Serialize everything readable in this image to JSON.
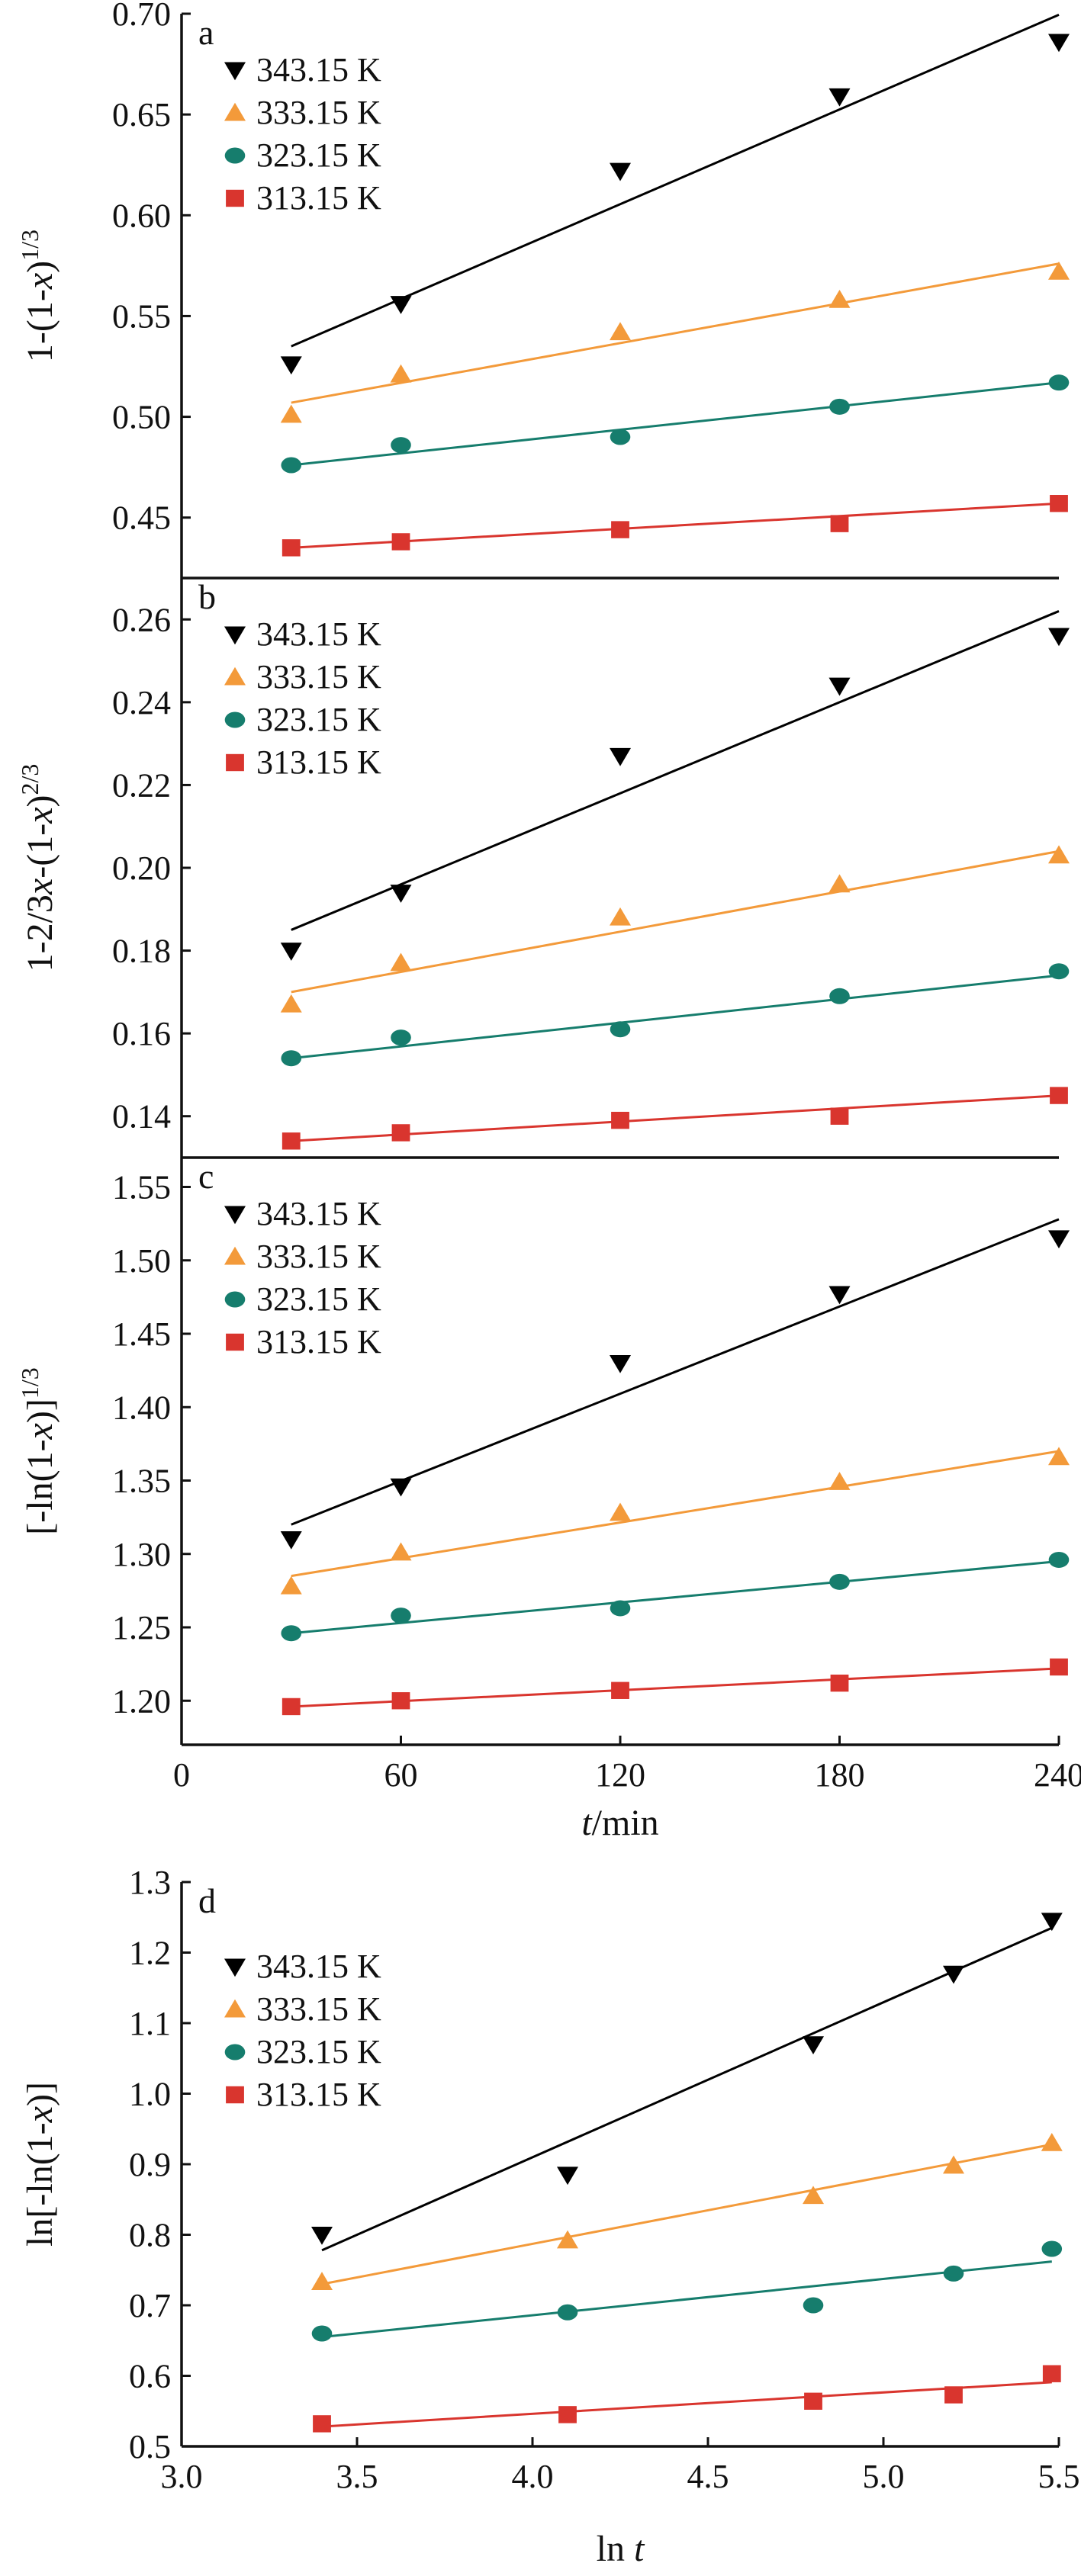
{
  "colors": {
    "343.15 K": "#000000",
    "333.15 K": "#f39a3a",
    "323.15 K": "#167d6d",
    "313.15 K": "#d9352e"
  },
  "markers": {
    "343.15 K": "triangle-down",
    "333.15 K": "triangle-up",
    "323.15 K": "circle",
    "313.15 K": "square"
  },
  "chart_data": [
    {
      "panel": "a",
      "type": "scatter",
      "ylabel": "1-(1-x)1/3",
      "ylim": [
        0.42,
        0.7
      ],
      "yticks": [
        "0.45",
        "0.50",
        "0.55",
        "0.60",
        "0.65",
        "0.70"
      ],
      "xlim": [
        0,
        240
      ],
      "legend_position": "top-left",
      "x": [
        30,
        60,
        120,
        180,
        240
      ],
      "series": [
        {
          "name": "343.15 K",
          "values": [
            0.526,
            0.556,
            0.622,
            0.659,
            0.686
          ],
          "fit": [
            0.535,
            0.6995
          ]
        },
        {
          "name": "333.15 K",
          "values": [
            0.501,
            0.521,
            0.542,
            0.558,
            0.572
          ],
          "fit": [
            0.507,
            0.576
          ]
        },
        {
          "name": "323.15 K",
          "values": [
            0.476,
            0.486,
            0.49,
            0.505,
            0.517
          ],
          "fit": [
            0.476,
            0.517
          ]
        },
        {
          "name": "313.15 K",
          "values": [
            0.435,
            0.438,
            0.444,
            0.447,
            0.457
          ],
          "fit": [
            0.435,
            0.457
          ]
        }
      ]
    },
    {
      "panel": "b",
      "type": "scatter",
      "ylabel": "1-2/3x-(1-x)2/3",
      "ylim": [
        0.13,
        0.27
      ],
      "yticks": [
        "0.14",
        "0.16",
        "0.18",
        "0.20",
        "0.22",
        "0.24",
        "0.26"
      ],
      "xlim": [
        0,
        240
      ],
      "legend_position": "top-left",
      "x": [
        30,
        60,
        120,
        180,
        240
      ],
      "series": [
        {
          "name": "343.15 K",
          "values": [
            0.18,
            0.194,
            0.227,
            0.244,
            0.256
          ],
          "fit": [
            0.185,
            0.262
          ]
        },
        {
          "name": "333.15 K",
          "values": [
            0.167,
            0.177,
            0.188,
            0.196,
            0.203
          ],
          "fit": [
            0.17,
            0.204
          ]
        },
        {
          "name": "323.15 K",
          "values": [
            0.154,
            0.159,
            0.161,
            0.169,
            0.175
          ],
          "fit": [
            0.154,
            0.174
          ]
        },
        {
          "name": "313.15 K",
          "values": [
            0.134,
            0.136,
            0.139,
            0.14,
            0.145
          ],
          "fit": [
            0.134,
            0.145
          ]
        }
      ]
    },
    {
      "panel": "c",
      "type": "scatter",
      "ylabel": "[-ln(1-x)]1/3",
      "ylim": [
        1.17,
        1.57
      ],
      "yticks": [
        "1.20",
        "1.25",
        "1.30",
        "1.35",
        "1.40",
        "1.45",
        "1.50",
        "1.55"
      ],
      "xlim": [
        0,
        240
      ],
      "xticks": [
        "0",
        "60",
        "120",
        "180",
        "240"
      ],
      "xlabel": "t/min",
      "legend_position": "top-left",
      "x": [
        30,
        60,
        120,
        180,
        240
      ],
      "series": [
        {
          "name": "343.15 K",
          "values": [
            1.31,
            1.346,
            1.43,
            1.477,
            1.515
          ],
          "fit": [
            1.32,
            1.528
          ]
        },
        {
          "name": "333.15 K",
          "values": [
            1.278,
            1.301,
            1.328,
            1.349,
            1.366
          ],
          "fit": [
            1.285,
            1.37
          ]
        },
        {
          "name": "323.15 K",
          "values": [
            1.246,
            1.258,
            1.263,
            1.281,
            1.296
          ],
          "fit": [
            1.246,
            1.295
          ]
        },
        {
          "name": "313.15 K",
          "values": [
            1.196,
            1.2,
            1.207,
            1.212,
            1.223
          ],
          "fit": [
            1.196,
            1.222
          ]
        }
      ]
    },
    {
      "panel": "d",
      "type": "scatter",
      "ylabel": "ln[-ln(1-x)]",
      "ylim": [
        0.5,
        1.3
      ],
      "yticks": [
        "0.5",
        "0.6",
        "0.7",
        "0.8",
        "0.9",
        "1.0",
        "1.1",
        "1.2",
        "1.3"
      ],
      "xlim": [
        3.0,
        5.5
      ],
      "xticks": [
        "3.0",
        "3.5",
        "4.0",
        "4.5",
        "5.0",
        "5.5"
      ],
      "xlabel": "ln t",
      "legend_position": "top-left",
      "x": [
        3.4,
        4.1,
        4.8,
        5.2,
        5.48
      ],
      "fit_x": [
        3.4,
        5.48
      ],
      "series": [
        {
          "name": "343.15 K",
          "values": [
            0.8,
            0.885,
            1.07,
            1.17,
            1.245
          ],
          "fit": [
            0.778,
            1.235
          ]
        },
        {
          "name": "333.15 K",
          "values": [
            0.733,
            0.792,
            0.855,
            0.898,
            0.93
          ],
          "fit": [
            0.73,
            0.928
          ]
        },
        {
          "name": "323.15 K",
          "values": [
            0.66,
            0.69,
            0.7,
            0.745,
            0.78
          ],
          "fit": [
            0.655,
            0.762
          ]
        },
        {
          "name": "313.15 K",
          "values": [
            0.532,
            0.545,
            0.564,
            0.573,
            0.603
          ],
          "fit": [
            0.528,
            0.591
          ]
        }
      ]
    }
  ]
}
